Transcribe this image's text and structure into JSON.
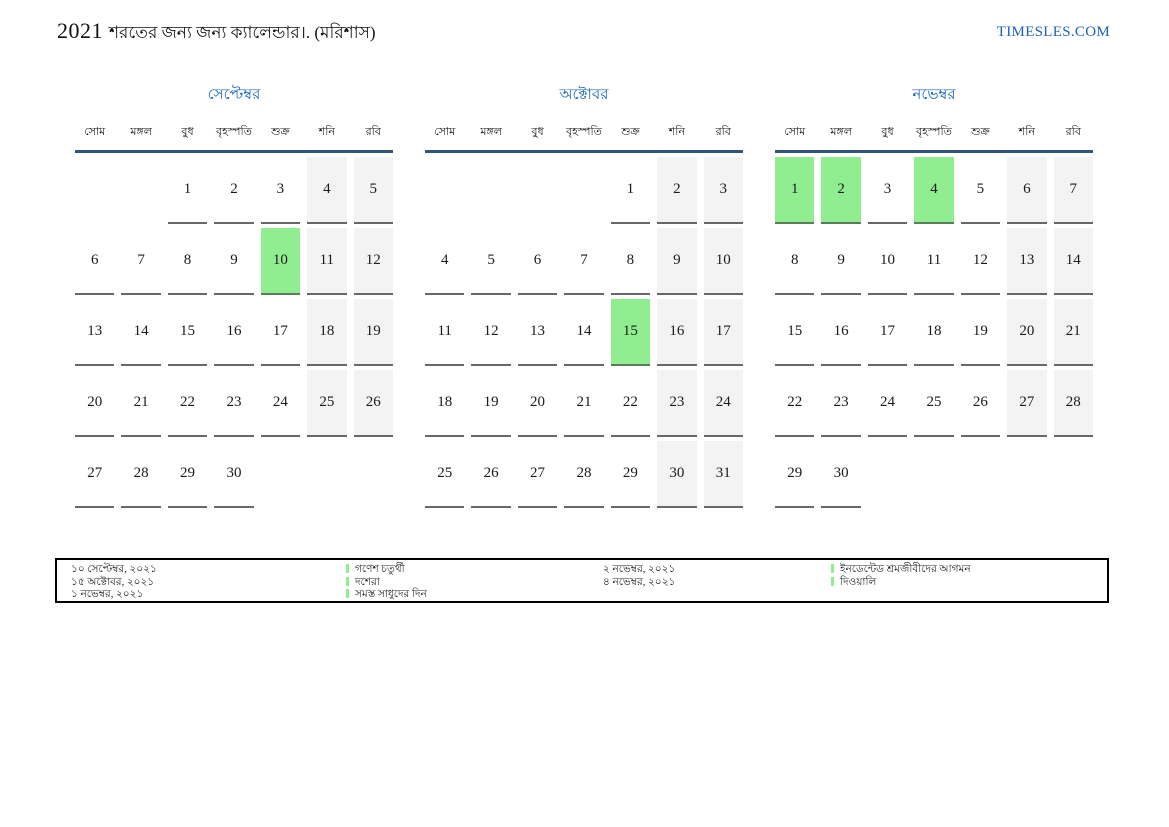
{
  "page": {
    "title_year": "2021",
    "title_rest": "শরতের জন্য জন্য ক্যালেন্ডার।. (মরিশাস)",
    "site": "TIMESLES.COM"
  },
  "colors": {
    "highlight_green": "#90ee90",
    "weekend_gray": "#f3f3f3",
    "month_title_blue": "#1766b8",
    "header_line_navy": "#31567d",
    "site_link_blue": "#1c63b7"
  },
  "weekdays": [
    "সোম",
    "মঙ্গল",
    "বুধ",
    "বৃহস্পতি",
    "শুক্র",
    "শনি",
    "রবি"
  ],
  "months": [
    {
      "name": "সেপ্টেম্বর",
      "weeks": [
        [
          null,
          null,
          1,
          2,
          3,
          4,
          5
        ],
        [
          6,
          7,
          8,
          9,
          10,
          11,
          12
        ],
        [
          13,
          14,
          15,
          16,
          17,
          18,
          19
        ],
        [
          20,
          21,
          22,
          23,
          24,
          25,
          26
        ],
        [
          27,
          28,
          29,
          30,
          null,
          null,
          null
        ]
      ],
      "highlighted": [
        10
      ]
    },
    {
      "name": "অক্টোবর",
      "weeks": [
        [
          null,
          null,
          null,
          null,
          1,
          2,
          3
        ],
        [
          4,
          5,
          6,
          7,
          8,
          9,
          10
        ],
        [
          11,
          12,
          13,
          14,
          15,
          16,
          17
        ],
        [
          18,
          19,
          20,
          21,
          22,
          23,
          24
        ],
        [
          25,
          26,
          27,
          28,
          29,
          30,
          31
        ]
      ],
      "highlighted": [
        15
      ]
    },
    {
      "name": "নভেম্বর",
      "weeks": [
        [
          1,
          2,
          3,
          4,
          5,
          6,
          7
        ],
        [
          8,
          9,
          10,
          11,
          12,
          13,
          14
        ],
        [
          15,
          16,
          17,
          18,
          19,
          20,
          21
        ],
        [
          22,
          23,
          24,
          25,
          26,
          27,
          28
        ],
        [
          29,
          30,
          null,
          null,
          null,
          null,
          null
        ]
      ],
      "highlighted": [
        1,
        2,
        4
      ]
    }
  ],
  "legend": {
    "items": [
      {
        "date": "১০ সেপ্টেম্বর, ২০২১",
        "label": "গণেশ চতুর্থী"
      },
      {
        "date": "১৫ অক্টোবর, ২০২১",
        "label": "দশেরা"
      },
      {
        "date": "১ নভেম্বর, ২০২১",
        "label": "সমস্ত সাধুদের দিন"
      },
      {
        "date": "২ নভেম্বর, ২০২১",
        "label": "ইনডেন্টেড শ্রমজীবীদের আগমন"
      },
      {
        "date": "৪ নভেম্বর, ২০২১",
        "label": "দিওয়ালি"
      }
    ]
  }
}
